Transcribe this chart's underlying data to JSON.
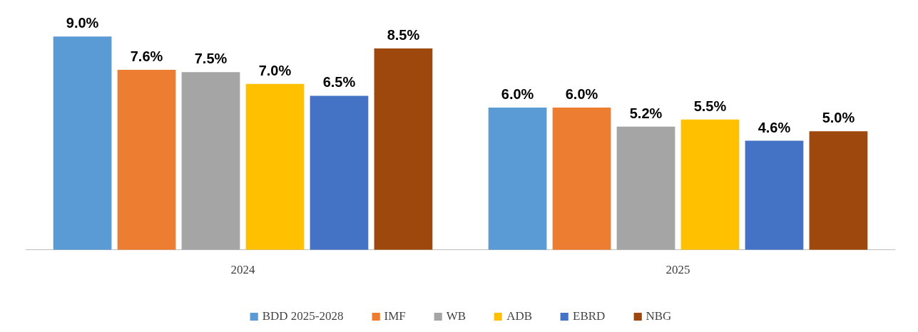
{
  "chart_data": {
    "type": "bar",
    "categories": [
      "2024",
      "2025"
    ],
    "series": [
      {
        "name": "BDD 2025-2028",
        "color": "#5b9bd5",
        "values": [
          9.0,
          6.0
        ],
        "value_labels": [
          "9.0%",
          "6.0%"
        ]
      },
      {
        "name": "IMF",
        "color": "#ed7d31",
        "values": [
          7.6,
          6.0
        ],
        "value_labels": [
          "7.6%",
          "6.0%"
        ]
      },
      {
        "name": "WB",
        "color": "#a5a5a5",
        "values": [
          7.5,
          5.2
        ],
        "value_labels": [
          "7.5%",
          "5.2%"
        ]
      },
      {
        "name": "ADB",
        "color": "#ffc000",
        "values": [
          7.0,
          5.5
        ],
        "value_labels": [
          "7.0%",
          "5.5%"
        ]
      },
      {
        "name": "EBRD",
        "color": "#4472c4",
        "values": [
          6.5,
          4.6
        ],
        "value_labels": [
          "6.5%",
          "4.6%"
        ]
      },
      {
        "name": "NBG",
        "color": "#9e480e",
        "values": [
          8.5,
          5.0
        ],
        "value_labels": [
          "8.5%",
          "5.0%"
        ]
      }
    ],
    "legend": "bottom"
  }
}
